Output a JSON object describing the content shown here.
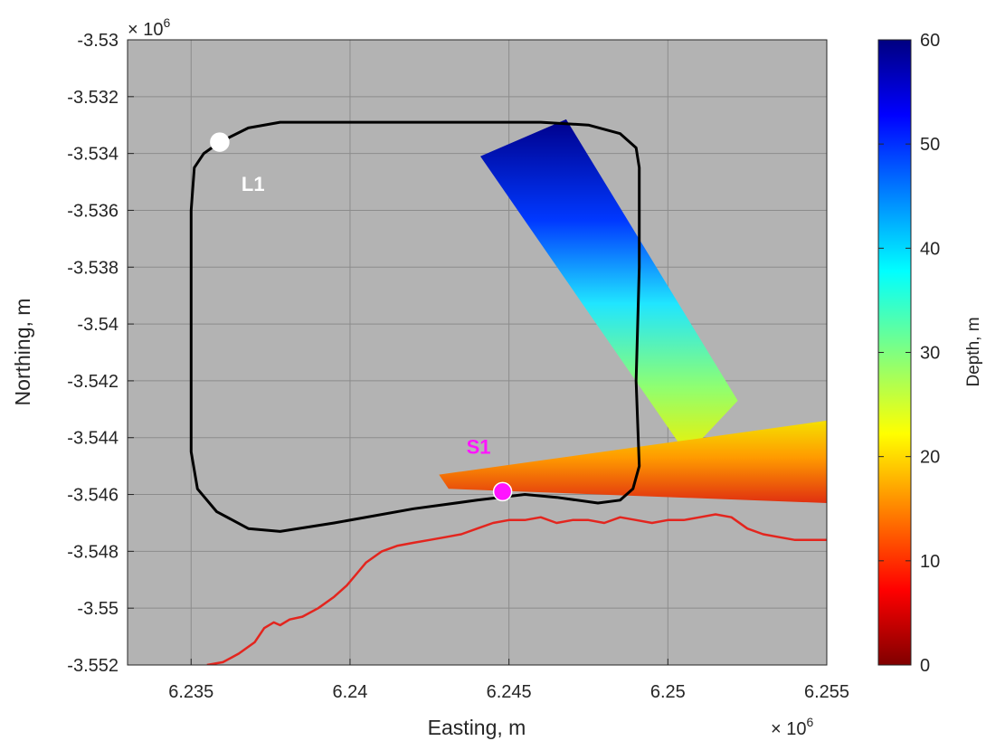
{
  "chart_data": {
    "type": "scatter",
    "xlabel": "Easting, m",
    "ylabel": "Northing, m",
    "x_exponent_label": "× 10",
    "x_exponent": "6",
    "y_exponent_label": "× 10",
    "y_exponent": "6",
    "xlim": [
      6.233,
      6.255
    ],
    "ylim": [
      -3.552,
      -3.53
    ],
    "x_ticks": [
      6.235,
      6.24,
      6.245,
      6.25,
      6.255
    ],
    "x_tick_labels": [
      "6.235",
      "6.24",
      "6.245",
      "6.25",
      "6.255"
    ],
    "y_ticks": [
      -3.53,
      -3.532,
      -3.534,
      -3.536,
      -3.538,
      -3.54,
      -3.542,
      -3.544,
      -3.546,
      -3.548,
      -3.55,
      -3.552
    ],
    "y_tick_labels": [
      "-3.53",
      "-3.532",
      "-3.534",
      "-3.536",
      "-3.538",
      "-3.54",
      "-3.542",
      "-3.544",
      "-3.546",
      "-3.548",
      "-3.55",
      "-3.552"
    ],
    "grid": true,
    "background": "#b3b3b3",
    "colorbar": {
      "label": "Depth, m",
      "range": [
        0,
        60
      ],
      "ticks": [
        0,
        10,
        20,
        30,
        40,
        50,
        60
      ],
      "tick_labels": [
        "0",
        "10",
        "20",
        "30",
        "40",
        "50",
        "60"
      ],
      "colormap": "jet-reversed"
    },
    "track_loop": {
      "color": "#000000",
      "points": [
        [
          6.2359,
          -3.5336
        ],
        [
          6.2368,
          -3.5331
        ],
        [
          6.2378,
          -3.5329
        ],
        [
          6.2395,
          -3.5329
        ],
        [
          6.243,
          -3.5329
        ],
        [
          6.246,
          -3.5329
        ],
        [
          6.2475,
          -3.533
        ],
        [
          6.2485,
          -3.5333
        ],
        [
          6.249,
          -3.5338
        ],
        [
          6.2491,
          -3.5345
        ],
        [
          6.2491,
          -3.538
        ],
        [
          6.249,
          -3.542
        ],
        [
          6.2491,
          -3.545
        ],
        [
          6.2489,
          -3.5458
        ],
        [
          6.2485,
          -3.5462
        ],
        [
          6.2478,
          -3.5463
        ],
        [
          6.2465,
          -3.5461
        ],
        [
          6.2455,
          -3.546
        ],
        [
          6.244,
          -3.5462
        ],
        [
          6.242,
          -3.5465
        ],
        [
          6.2395,
          -3.547
        ],
        [
          6.2378,
          -3.5473
        ],
        [
          6.2368,
          -3.5472
        ],
        [
          6.2358,
          -3.5466
        ],
        [
          6.2352,
          -3.5458
        ],
        [
          6.235,
          -3.5445
        ],
        [
          6.235,
          -3.54
        ],
        [
          6.235,
          -3.536
        ],
        [
          6.2351,
          -3.5345
        ],
        [
          6.2354,
          -3.534
        ],
        [
          6.2359,
          -3.5336
        ]
      ]
    },
    "coastline": {
      "color": "#e3251e",
      "points": [
        [
          6.2355,
          -3.552
        ],
        [
          6.236,
          -3.5519
        ],
        [
          6.2365,
          -3.5516
        ],
        [
          6.237,
          -3.5512
        ],
        [
          6.2373,
          -3.5507
        ],
        [
          6.2376,
          -3.5505
        ],
        [
          6.2378,
          -3.5506
        ],
        [
          6.2381,
          -3.5504
        ],
        [
          6.2385,
          -3.5503
        ],
        [
          6.239,
          -3.55
        ],
        [
          6.2395,
          -3.5496
        ],
        [
          6.2399,
          -3.5492
        ],
        [
          6.2402,
          -3.5488
        ],
        [
          6.2405,
          -3.5484
        ],
        [
          6.241,
          -3.548
        ],
        [
          6.2415,
          -3.5478
        ],
        [
          6.242,
          -3.5477
        ],
        [
          6.2425,
          -3.5476
        ],
        [
          6.243,
          -3.5475
        ],
        [
          6.2435,
          -3.5474
        ],
        [
          6.244,
          -3.5472
        ],
        [
          6.2445,
          -3.547
        ],
        [
          6.245,
          -3.5469
        ],
        [
          6.2455,
          -3.5469
        ],
        [
          6.246,
          -3.5468
        ],
        [
          6.2465,
          -3.547
        ],
        [
          6.247,
          -3.5469
        ],
        [
          6.2475,
          -3.5469
        ],
        [
          6.248,
          -3.547
        ],
        [
          6.2485,
          -3.5468
        ],
        [
          6.249,
          -3.5469
        ],
        [
          6.2495,
          -3.547
        ],
        [
          6.25,
          -3.5469
        ],
        [
          6.2505,
          -3.5469
        ],
        [
          6.251,
          -3.5468
        ],
        [
          6.2515,
          -3.5467
        ],
        [
          6.252,
          -3.5468
        ],
        [
          6.2525,
          -3.5472
        ],
        [
          6.253,
          -3.5474
        ],
        [
          6.2535,
          -3.5475
        ],
        [
          6.254,
          -3.5476
        ],
        [
          6.2545,
          -3.5476
        ],
        [
          6.255,
          -3.5476
        ]
      ]
    },
    "depth_swaths": [
      {
        "name": "",
        "corners": [
          [
            6.2441,
            -3.5341
          ],
          [
            6.2468,
            -3.5328
          ],
          [
            6.2522,
            -3.5427
          ],
          [
            6.2506,
            -3.5446
          ]
        ],
        "depth_top": 58,
        "depth_bottom": 25
      },
      {
        "name": "",
        "corners": [
          [
            6.2428,
            -3.5453
          ],
          [
            6.255,
            -3.5434
          ],
          [
            6.255,
            -3.5463
          ],
          [
            6.2431,
            -3.5458
          ]
        ],
        "depth_top": 20,
        "depth_bottom": 10
      }
    ],
    "markers": [
      {
        "label": "L1",
        "x": 6.2359,
        "y": -3.5336,
        "color": "#ffffff",
        "label_color": "#ffffff"
      },
      {
        "label": "S1",
        "x": 6.2448,
        "y": -3.5459,
        "color": "#ff14ff",
        "label_color": "#ff14ff"
      }
    ]
  }
}
